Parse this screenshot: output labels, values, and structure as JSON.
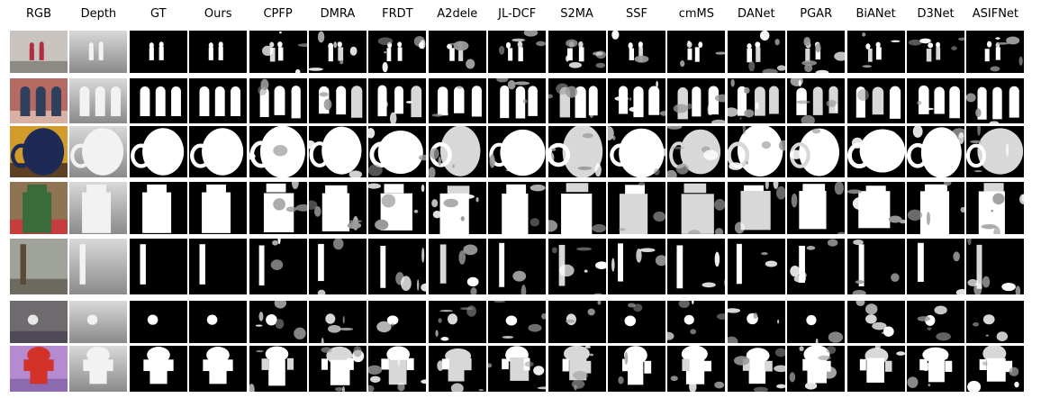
{
  "columns": [
    {
      "label": "RGB",
      "kind": "rgb"
    },
    {
      "label": "Depth",
      "kind": "depth"
    },
    {
      "label": "GT",
      "kind": "gt"
    },
    {
      "label": "Ours",
      "kind": "ours"
    },
    {
      "label": "CPFP",
      "kind": "method"
    },
    {
      "label": "DMRA",
      "kind": "method"
    },
    {
      "label": "FRDT",
      "kind": "method"
    },
    {
      "label": "A2dele",
      "kind": "method"
    },
    {
      "label": "JL-DCF",
      "kind": "method"
    },
    {
      "label": "S2MA",
      "kind": "method"
    },
    {
      "label": "SSF",
      "kind": "method"
    },
    {
      "label": "cmMS",
      "kind": "method"
    },
    {
      "label": "DANet",
      "kind": "method"
    },
    {
      "label": "PGAR",
      "kind": "method"
    },
    {
      "label": "BiANet",
      "kind": "method"
    },
    {
      "label": "D3Net",
      "kind": "method"
    },
    {
      "label": "ASIFNet",
      "kind": "method"
    }
  ],
  "rows": [
    {
      "scene": "people-in-front-of-wall",
      "colors": {
        "bg": "#c9c4bf",
        "accent": "#b12e3c",
        "ground": "#8d8a86"
      }
    },
    {
      "scene": "arched-windows",
      "colors": {
        "bg": "#b56a63",
        "accent": "#2f3f5c",
        "ground": "#d8b0a4"
      }
    },
    {
      "scene": "coffee-mug",
      "colors": {
        "bg": "#d29b2c",
        "accent": "#1c2a55",
        "ground": "#5d4022"
      }
    },
    {
      "scene": "vitamin-bottle",
      "colors": {
        "bg": "#8e7452",
        "accent": "#3a6b3a",
        "ground": "#c63d3d"
      }
    },
    {
      "scene": "pole-on-shore",
      "colors": {
        "bg": "#9fa39a",
        "accent": "#5a4a3a",
        "ground": "#6d6a5f"
      }
    },
    {
      "scene": "white-dot-on-table",
      "colors": {
        "bg": "#6f6a6e",
        "accent": "#e8e8e8",
        "ground": "#4f4a55"
      }
    },
    {
      "scene": "red-toy-on-purple",
      "colors": {
        "bg": "#b48ad0",
        "accent": "#d23228",
        "ground": "#8d69b0"
      }
    }
  ]
}
